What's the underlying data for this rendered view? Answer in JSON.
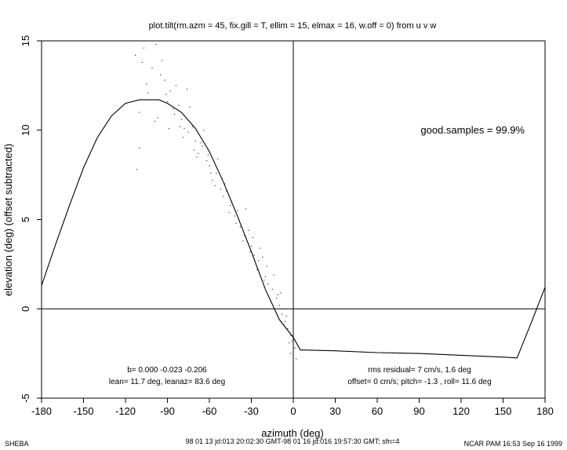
{
  "chart_data": {
    "type": "scatter",
    "title": "plot.tilt(rm.azm = 45, fix.gill = T, ellim = 15, elmax = 16, w.off = 0) from u v w",
    "xlabel": "azimuth (deg)",
    "ylabel": "elevation (deg)  (offset subtracted)",
    "xlim": [
      -180,
      180
    ],
    "ylim": [
      -5,
      15
    ],
    "xticks": [
      "-180",
      "-150",
      "-120",
      "-90",
      "-60",
      "-30",
      "0",
      "30",
      "60",
      "90",
      "120",
      "150",
      "180"
    ],
    "yticks": [
      "-5",
      "0",
      "5",
      "10",
      "15"
    ],
    "grid": false,
    "annotations": {
      "good_samples": "good.samples = 99.9%",
      "b_line": "b=  0.000 -0.023 -0.206",
      "lean_line": "lean= 11.7 deg, leanaz= 83.6 deg",
      "rms_line": "rms residual= 7 cm/s, 1.6 deg",
      "offset_line": "offset= 0 cm/s; pitch=  -1.3 , roll=  11.6 deg"
    },
    "series": [
      {
        "type": "line",
        "x": [
          -180,
          -170,
          -160,
          -150,
          -140,
          -130,
          -120,
          -110,
          -100,
          -96,
          -90,
          -80,
          -70,
          -60,
          -50,
          -40,
          -30,
          -20,
          -10,
          0,
          5
        ],
        "y": [
          1.3,
          3.6,
          5.8,
          7.9,
          9.6,
          10.8,
          11.5,
          11.7,
          11.7,
          11.7,
          11.5,
          11.0,
          10.1,
          8.8,
          7.1,
          5.2,
          3.2,
          1.1,
          -0.6,
          -1.6,
          -2.3
        ]
      },
      {
        "type": "line",
        "x": [
          5,
          30,
          60,
          90,
          120,
          150,
          160,
          170,
          180
        ],
        "y": [
          -2.3,
          -2.35,
          -2.45,
          -2.5,
          -2.6,
          -2.7,
          -2.75,
          -0.8,
          1.2
        ]
      },
      {
        "type": "scatter",
        "x": [
          -113,
          -110,
          -108,
          -105,
          -101,
          -98,
          -95,
          -92,
          -90,
          -88,
          -85,
          -82,
          -80,
          -78,
          -75,
          -72,
          -70,
          -68,
          -65,
          -62,
          -60,
          -58,
          -55,
          -52,
          -50,
          -48,
          -45,
          -42,
          -40,
          -38,
          -35,
          -32,
          -30,
          -28,
          -25,
          -22,
          -20,
          -18,
          -15,
          -12,
          -10,
          -8,
          -6,
          -4,
          -2,
          -1,
          1,
          2,
          -110,
          -104,
          -99,
          -94,
          -89,
          -84,
          -79,
          -74,
          -69,
          -64,
          -59,
          -54,
          -49,
          -44,
          -39,
          -34,
          -29,
          -24,
          -19,
          -14,
          -9,
          -5,
          -3,
          -112,
          -107,
          -97,
          -91,
          -86,
          -81,
          -76,
          -71,
          -66,
          -61,
          -56,
          -51,
          -46,
          -41,
          -36,
          -31,
          -26,
          -21,
          -16,
          -11,
          -7,
          -2
        ],
        "y": [
          14.2,
          11.0,
          13.8,
          12.6,
          13.5,
          14.8,
          13.1,
          12.8,
          11.6,
          12.2,
          10.9,
          11.4,
          10.6,
          10.1,
          9.9,
          10.2,
          9.4,
          8.7,
          9.1,
          8.3,
          8.0,
          7.2,
          7.6,
          6.7,
          6.3,
          6.6,
          5.8,
          5.2,
          5.5,
          4.6,
          4.1,
          4.4,
          3.5,
          3.0,
          2.7,
          2.9,
          1.8,
          1.4,
          1.1,
          0.6,
          0.2,
          -0.3,
          -0.7,
          -1.1,
          -1.5,
          -1.8,
          -2.2,
          -2.8,
          9.0,
          12.1,
          10.5,
          13.9,
          10.1,
          12.5,
          9.6,
          11.3,
          8.5,
          10.0,
          7.6,
          8.4,
          7.0,
          6.0,
          5.0,
          5.6,
          4.0,
          3.4,
          2.4,
          1.9,
          0.9,
          -0.4,
          -1.9,
          7.8,
          14.6,
          10.7,
          12.0,
          11.2,
          10.2,
          12.3,
          8.9,
          9.3,
          8.6,
          6.9,
          7.3,
          5.4,
          4.8,
          3.8,
          3.2,
          2.2,
          1.6,
          0.4,
          0.8,
          -0.9,
          -2.5
        ]
      }
    ]
  },
  "footer": {
    "left": "SHEBA",
    "center": "98 01 13 jd:013 20:02:30 GMT-98 01 16 jd:016 19:57:30 GMT; sfn=4",
    "right": "NCAR PAM 16:53 Sep 16 1999"
  }
}
